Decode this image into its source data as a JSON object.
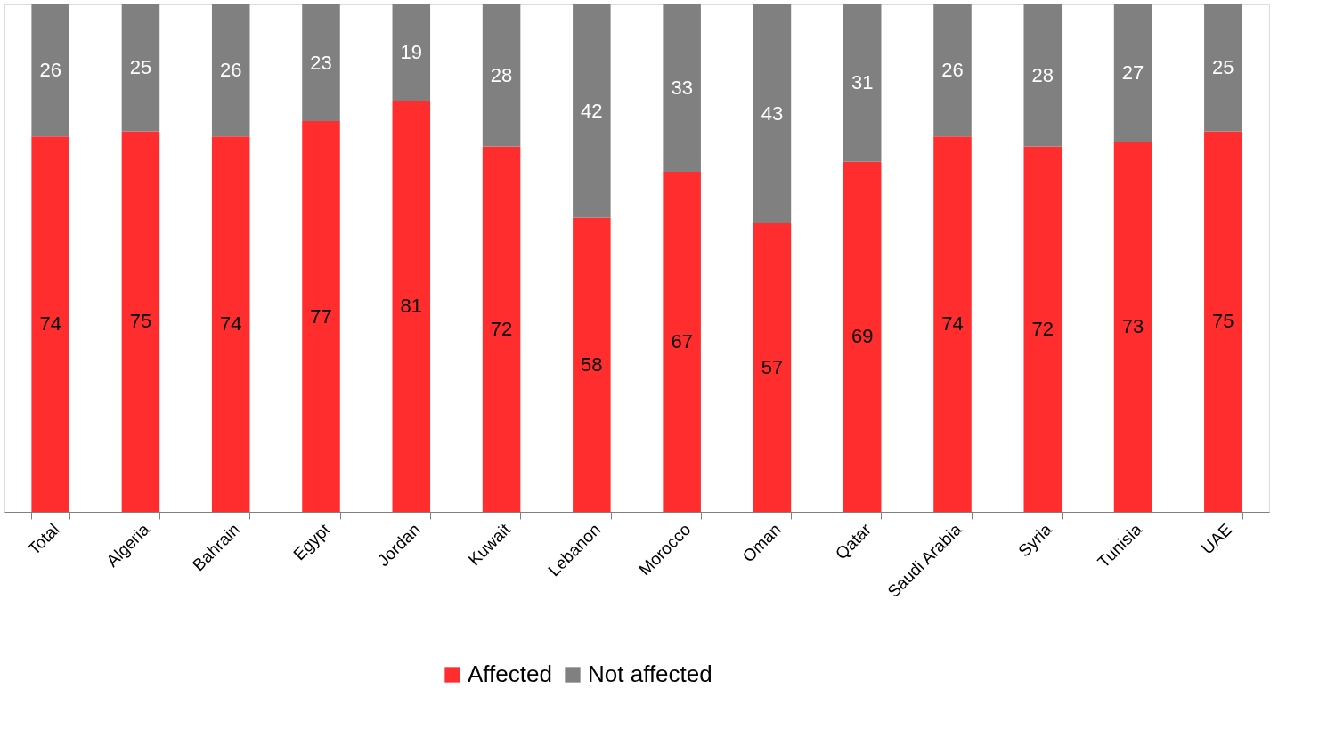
{
  "chart_data": {
    "type": "bar",
    "stacked": true,
    "data_labels": true,
    "legend": "bottom",
    "grid": false,
    "categories": [
      "Total",
      "Algeria",
      "Bahrain",
      "Egypt",
      "Jordan",
      "Kuwait",
      "Lebanon",
      "Morocco",
      "Oman",
      "Qatar",
      "Saudi Arabia",
      "Syria",
      "Tunisia",
      "UAE"
    ],
    "series": [
      {
        "name": "Affected",
        "color": "#ff2d2d",
        "values": [
          74,
          75,
          74,
          77,
          81,
          72,
          58,
          67,
          57,
          69,
          74,
          72,
          73,
          75
        ]
      },
      {
        "name": "Not affected",
        "color": "#808080",
        "values": [
          26,
          25,
          26,
          23,
          19,
          28,
          42,
          33,
          43,
          31,
          26,
          28,
          27,
          25
        ]
      }
    ]
  }
}
